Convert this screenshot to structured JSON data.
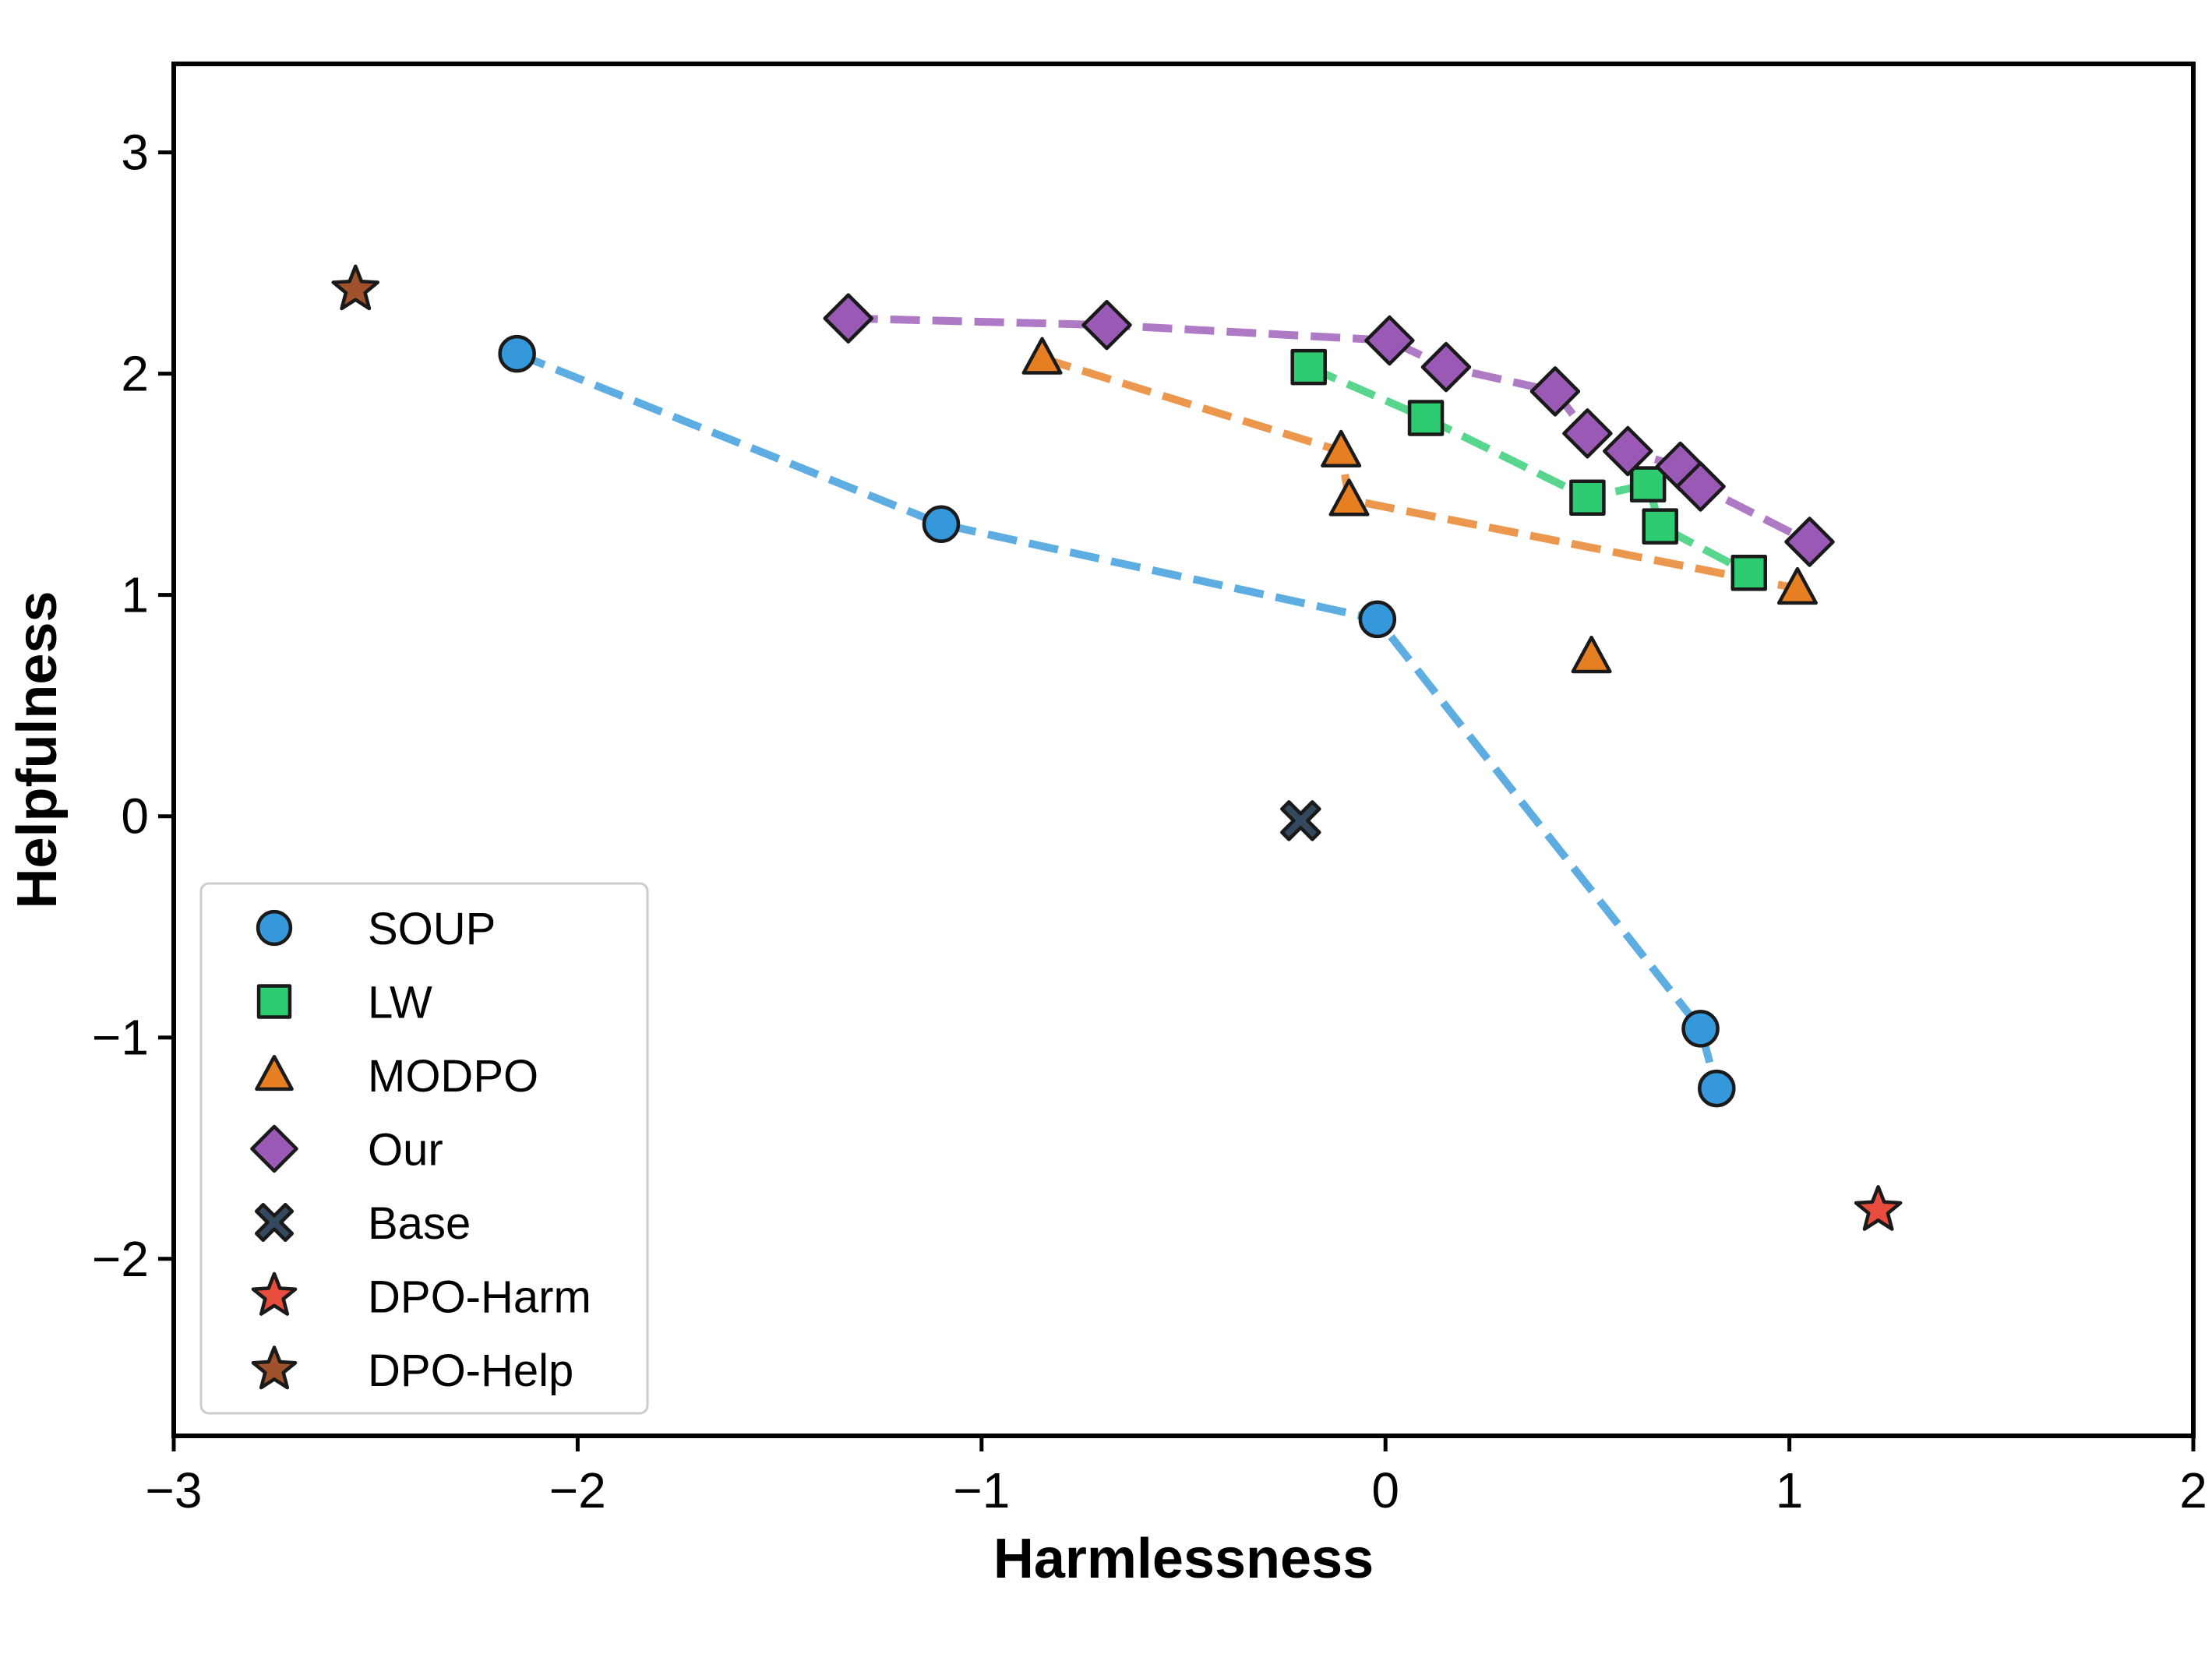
{
  "chart_data": {
    "type": "scatter",
    "xlabel": "Harmlessness",
    "ylabel": "Helpfulness",
    "xlim": [
      -3,
      2
    ],
    "ylim": [
      -2.8,
      3.4
    ],
    "xticks": [
      {
        "v": -3,
        "label": "−3"
      },
      {
        "v": -2,
        "label": "−2"
      },
      {
        "v": -1,
        "label": "−1"
      },
      {
        "v": 0,
        "label": "0"
      },
      {
        "v": 1,
        "label": "1"
      },
      {
        "v": 2,
        "label": "2"
      }
    ],
    "yticks": [
      {
        "v": -2,
        "label": "−2"
      },
      {
        "v": -1,
        "label": "−1"
      },
      {
        "v": 0,
        "label": "0"
      },
      {
        "v": 1,
        "label": "1"
      },
      {
        "v": 2,
        "label": "2"
      },
      {
        "v": 3,
        "label": "3"
      }
    ],
    "grid": false,
    "legend_position": "lower-left",
    "series": [
      {
        "name": "SOUP",
        "marker": "circle",
        "color": "#3498db",
        "line": true,
        "points": [
          [
            -2.15,
            2.09
          ],
          [
            -1.1,
            1.32
          ],
          [
            -0.02,
            0.89
          ],
          [
            0.78,
            -0.96
          ],
          [
            0.82,
            -1.23
          ]
        ]
      },
      {
        "name": "LW",
        "marker": "square",
        "color": "#2ecc71",
        "line": true,
        "points": [
          [
            -0.19,
            2.03
          ],
          [
            0.1,
            1.8
          ],
          [
            0.5,
            1.44
          ],
          [
            0.65,
            1.5
          ],
          [
            0.68,
            1.31
          ],
          [
            0.9,
            1.1
          ]
        ]
      },
      {
        "name": "MODPO",
        "marker": "triangle",
        "color": "#e67e22",
        "line": true,
        "line_points": [
          [
            -0.85,
            2.07
          ],
          [
            -0.11,
            1.65
          ],
          [
            -0.09,
            1.43
          ],
          [
            1.02,
            1.03
          ]
        ],
        "points": [
          [
            -0.85,
            2.07
          ],
          [
            -0.11,
            1.65
          ],
          [
            -0.09,
            1.43
          ],
          [
            1.02,
            1.03
          ],
          [
            0.51,
            0.72
          ]
        ]
      },
      {
        "name": "Our",
        "marker": "diamond",
        "color": "#9b59b6",
        "line": true,
        "points": [
          [
            -1.33,
            2.25
          ],
          [
            -0.69,
            2.22
          ],
          [
            0.01,
            2.15
          ],
          [
            0.15,
            2.03
          ],
          [
            0.42,
            1.92
          ],
          [
            0.5,
            1.73
          ],
          [
            0.6,
            1.65
          ],
          [
            0.73,
            1.58
          ],
          [
            0.78,
            1.49
          ],
          [
            1.05,
            1.24
          ]
        ]
      },
      {
        "name": "Base",
        "marker": "x",
        "color": "#34495e",
        "line": false,
        "points": [
          [
            -0.21,
            -0.02
          ]
        ]
      },
      {
        "name": "DPO-Harm",
        "marker": "star",
        "color": "#e74c3c",
        "line": false,
        "points": [
          [
            1.22,
            -1.78
          ]
        ]
      },
      {
        "name": "DPO-Help",
        "marker": "star",
        "color": "#a0522d",
        "line": false,
        "points": [
          [
            -2.55,
            2.38
          ]
        ]
      }
    ]
  }
}
